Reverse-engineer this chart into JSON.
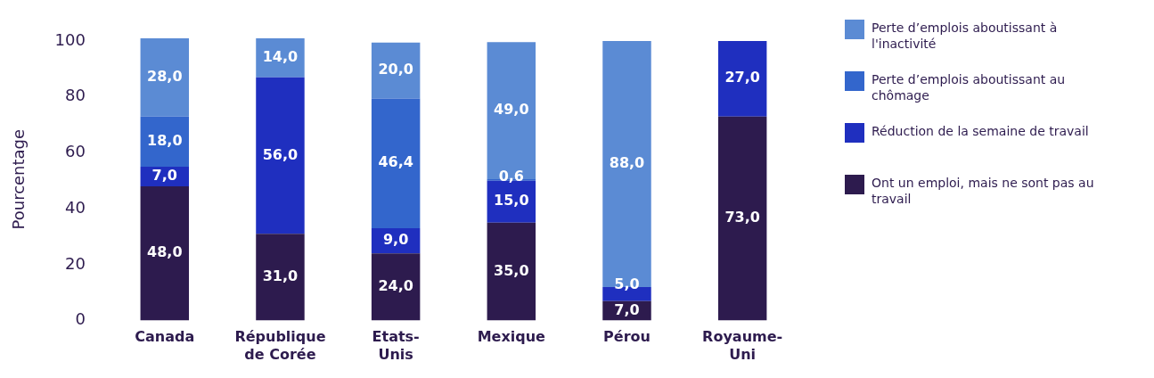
{
  "chart_data": {
    "type": "bar",
    "stacked": true,
    "ylabel": "Pourcentage",
    "ylim": [
      0,
      101
    ],
    "yticks": [
      0,
      20,
      40,
      60,
      80,
      100
    ],
    "grid": false,
    "legend": "right",
    "categories": [
      "Canada",
      "République de Corée",
      "Etats-Unis",
      "Mexique",
      "Pérou",
      "Royaume-Uni"
    ],
    "series": [
      {
        "name": "Ont un emploi, mais ne sont pas au travail",
        "color": "#2d1b4e",
        "values": [
          48,
          31,
          24,
          35,
          7,
          73
        ],
        "value_labels": [
          "48,0",
          "31,0",
          "24,0",
          "35,0",
          "7,0",
          "73,0"
        ]
      },
      {
        "name": "Réduction de la semaine de travail",
        "color": "#1f2fbf",
        "values": [
          7,
          56,
          9,
          15,
          5,
          27
        ],
        "value_labels": [
          "7,0",
          "56,0",
          "9,0",
          "15,0",
          "5,0",
          "27,0"
        ]
      },
      {
        "name": "Perte d’emplois aboutissant au chômage",
        "color": "#3366cc",
        "values": [
          18,
          null,
          46.4,
          0.6,
          null,
          null
        ],
        "value_labels": [
          "18,0",
          null,
          "46,4",
          "0,6",
          null,
          null
        ]
      },
      {
        "name": "Perte d’emplois aboutissant à l'inactivité",
        "color": "#5b8bd4",
        "values": [
          28,
          14,
          20,
          49,
          88,
          null
        ],
        "value_labels": [
          "28,0",
          "14,0",
          "20,0",
          "49,0",
          "88,0",
          null
        ]
      }
    ]
  }
}
